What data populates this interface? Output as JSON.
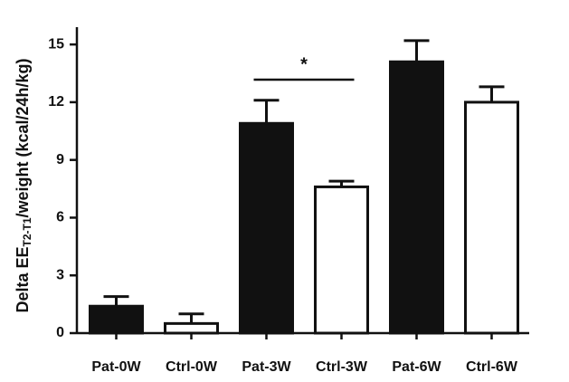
{
  "chart_data": {
    "type": "bar",
    "y_label": {
      "main": "Delta EE",
      "subscript": "T2-T1",
      "suffix": "/weight (kcal/24h/kg)"
    },
    "categories": [
      "Pat-0W",
      "Ctrl-0W",
      "Pat-3W",
      "Ctrl-3W",
      "Pat-6W",
      "Ctrl-6W"
    ],
    "values": [
      1.4,
      0.5,
      10.9,
      7.6,
      14.1,
      12.0
    ],
    "errors": [
      0.5,
      0.5,
      1.2,
      0.3,
      1.1,
      0.8
    ],
    "colors": [
      "#111111",
      "#ffffff",
      "#111111",
      "#ffffff",
      "#111111",
      "#ffffff"
    ],
    "ylim": [
      0,
      15.9
    ],
    "yticks": [
      0,
      3,
      6,
      9,
      12,
      15
    ],
    "annotation": "*"
  }
}
